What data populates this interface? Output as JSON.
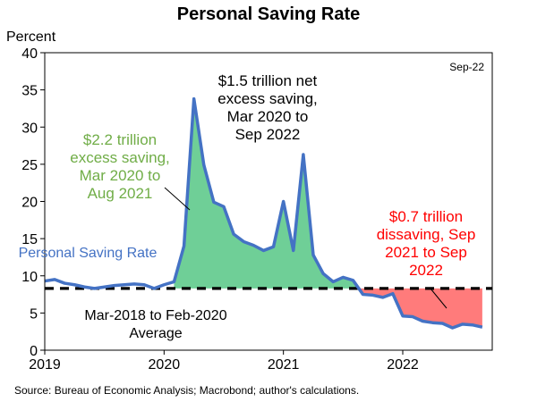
{
  "chart_data": {
    "type": "line",
    "title": "Personal Saving Rate",
    "ylabel": "Percent",
    "ylim": [
      0,
      40
    ],
    "yticks": [
      0,
      5,
      10,
      15,
      20,
      25,
      30,
      35,
      40
    ],
    "xlim": [
      "2019-01",
      "2022-10"
    ],
    "xticks": [
      "2019",
      "2020",
      "2021",
      "2022"
    ],
    "grid": false,
    "series_label": "Personal Saving Rate",
    "line_color": "#4472C4",
    "average": {
      "value": 8.3,
      "label_line1": "Mar-2018 to Feb-2020",
      "label_line2": "Average"
    },
    "fill_colors": {
      "excess": "#6FCF97",
      "dissaving": "#FF7B7B"
    },
    "series": [
      {
        "name": "Personal Saving Rate",
        "x": [
          "2019-01",
          "2019-02",
          "2019-03",
          "2019-04",
          "2019-05",
          "2019-06",
          "2019-07",
          "2019-08",
          "2019-09",
          "2019-10",
          "2019-11",
          "2019-12",
          "2020-01",
          "2020-02",
          "2020-03",
          "2020-04",
          "2020-05",
          "2020-06",
          "2020-07",
          "2020-08",
          "2020-09",
          "2020-10",
          "2020-11",
          "2020-12",
          "2021-01",
          "2021-02",
          "2021-03",
          "2021-04",
          "2021-05",
          "2021-06",
          "2021-07",
          "2021-08",
          "2021-09",
          "2021-10",
          "2021-11",
          "2021-12",
          "2022-01",
          "2022-02",
          "2022-03",
          "2022-04",
          "2022-05",
          "2022-06",
          "2022-07",
          "2022-08",
          "2022-09"
        ],
        "values": [
          9.3,
          9.5,
          9.0,
          8.8,
          8.5,
          8.3,
          8.5,
          8.7,
          8.8,
          8.9,
          8.8,
          8.3,
          8.8,
          9.2,
          14.0,
          33.8,
          24.9,
          19.9,
          19.3,
          15.6,
          14.6,
          14.1,
          13.4,
          13.9,
          20.0,
          13.4,
          26.3,
          12.8,
          10.3,
          9.2,
          9.8,
          9.4,
          7.5,
          7.4,
          7.1,
          7.6,
          4.6,
          4.5,
          3.9,
          3.7,
          3.6,
          3.0,
          3.5,
          3.4,
          3.1
        ]
      }
    ],
    "annotations": {
      "excess_2021": {
        "lines": [
          "$2.2 trillion",
          "excess saving,",
          "Mar 2020 to",
          "Aug 2021"
        ],
        "color": "#70AD47"
      },
      "net_excess": {
        "lines": [
          "$1.5 trillion net",
          "excess saving,",
          "Mar 2020 to",
          "Sep 2022"
        ],
        "color": "#000000"
      },
      "dissaving": {
        "lines": [
          "$0.7 trillion",
          "dissaving, Sep",
          "2021 to Sep",
          "2022"
        ],
        "color": "#FF0000"
      },
      "date_stamp": "Sep-22"
    },
    "source": "Source: Bureau of Economic Analysis; Macrobond; author's calculations."
  }
}
